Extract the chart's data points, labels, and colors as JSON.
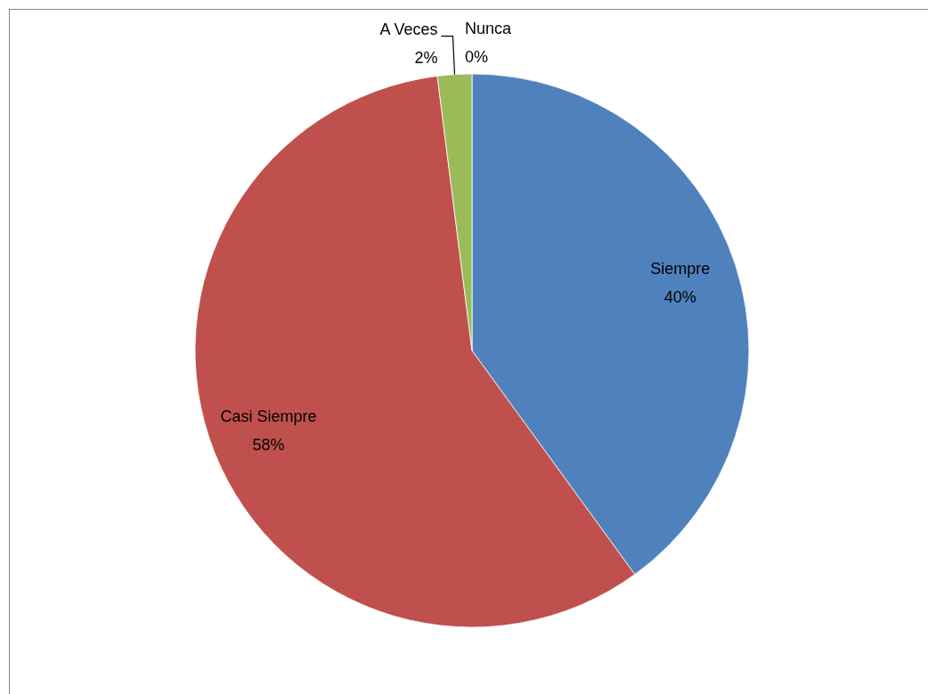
{
  "chart_data": {
    "type": "pie",
    "categories": [
      "Siempre",
      "Casi Siempre",
      "A Veces",
      "Nunca"
    ],
    "values": [
      40,
      58,
      2,
      0
    ],
    "colors": [
      "#4f81bd",
      "#c0504d",
      "#9bbb59",
      "#8064a2"
    ],
    "value_labels": [
      "40%",
      "58%",
      "2%",
      "0%"
    ]
  }
}
